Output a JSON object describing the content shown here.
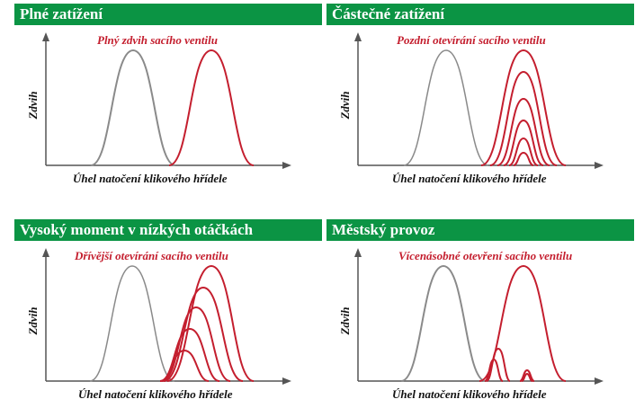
{
  "colors": {
    "header_bg": "#0b9444",
    "accent_red": "#c41e2e",
    "gray_curve": "#8a8a8a",
    "axis": "#555555"
  },
  "panels": [
    {
      "title": "Plné zatížení",
      "subtitle": "Plný zdvih sacího ventilu",
      "ylabel": "Zdvih",
      "xlabel": "Úhel natočení klikového hřídele"
    },
    {
      "title": "Částečné zatížení",
      "subtitle": "Pozdní otevírání sacího ventilu",
      "ylabel": "Zdvih",
      "xlabel": "Úhel natočení klikového hřídele"
    },
    {
      "title": "Vysoký moment v nízkých otáčkách",
      "subtitle": "Dřívější otevírání sacího ventilu",
      "ylabel": "Zdvih",
      "xlabel": "Úhel natočení klikového hřídele"
    },
    {
      "title": "Městský provoz",
      "subtitle": "Vícenásobné otevření sacího ventilu",
      "ylabel": "Zdvih",
      "xlabel": "Úhel natočení klikového hřídele"
    }
  ]
}
